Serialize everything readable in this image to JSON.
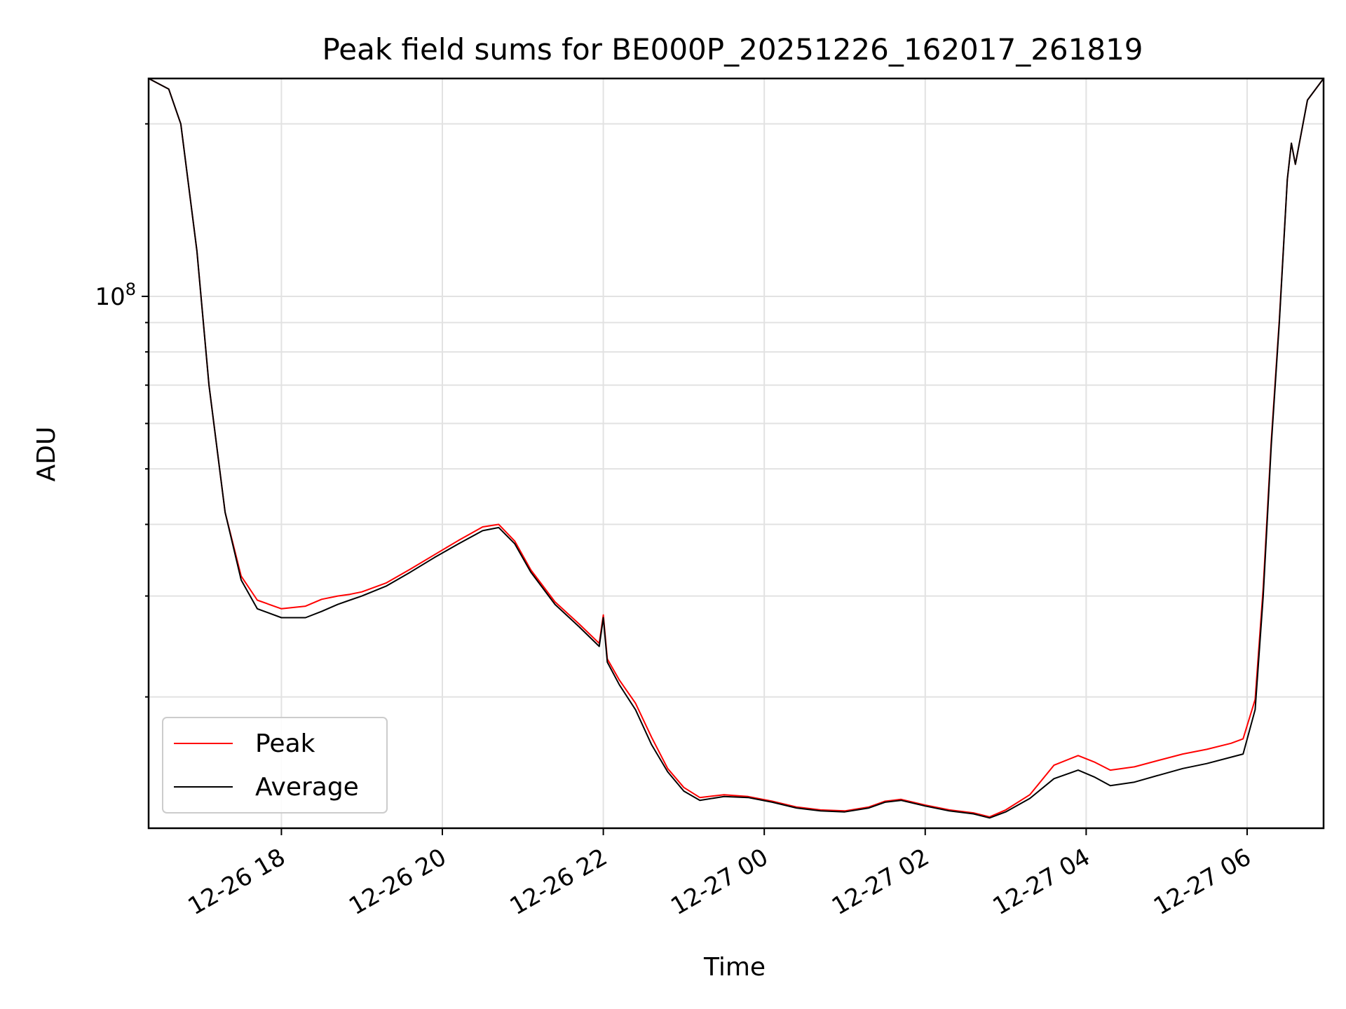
{
  "chart_data": {
    "type": "line",
    "title": "Peak field sums for BE000P_20251226_162017_261819",
    "xlabel": "Time",
    "ylabel": "ADU",
    "yscale": "log",
    "x_unit": "hours since 12-26 16:00",
    "xlim": [
      0.35,
      14.95
    ],
    "ylim": [
      11800000,
      240000000
    ],
    "x_ticks": [
      {
        "value": 2,
        "label": "12-26 18"
      },
      {
        "value": 4,
        "label": "12-26 20"
      },
      {
        "value": 6,
        "label": "12-26 22"
      },
      {
        "value": 8,
        "label": "12-27 00"
      },
      {
        "value": 10,
        "label": "12-27 02"
      },
      {
        "value": 12,
        "label": "12-27 04"
      },
      {
        "value": 14,
        "label": "12-27 06"
      }
    ],
    "y_ticks": [
      {
        "value": 100000000,
        "base": "10",
        "exp": "8"
      }
    ],
    "grid": true,
    "legend": {
      "position": "lower-left",
      "entries": [
        "Peak",
        "Average"
      ]
    },
    "colors": {
      "peak": "#ff0000",
      "average": "#000000",
      "grid": "#e2e2e2"
    },
    "series": [
      {
        "name": "Average",
        "color": "#000000",
        "x": [
          0.35,
          0.6,
          0.75,
          0.95,
          1.1,
          1.3,
          1.5,
          1.7,
          2.0,
          2.3,
          2.5,
          2.7,
          2.85,
          3.0,
          3.3,
          3.6,
          3.9,
          4.2,
          4.5,
          4.7,
          4.9,
          5.1,
          5.4,
          5.7,
          5.95,
          6.0,
          6.05,
          6.2,
          6.4,
          6.6,
          6.8,
          7.0,
          7.2,
          7.5,
          7.8,
          8.1,
          8.4,
          8.7,
          9.0,
          9.3,
          9.5,
          9.7,
          10.0,
          10.3,
          10.6,
          10.8,
          11.0,
          11.3,
          11.6,
          11.9,
          12.1,
          12.3,
          12.6,
          12.9,
          13.2,
          13.5,
          13.8,
          13.95,
          14.1,
          14.2,
          14.3,
          14.4,
          14.5,
          14.55,
          14.6,
          14.75,
          14.95
        ],
        "values": [
          240000000,
          230000000,
          200000000,
          120000000,
          70000000,
          42000000,
          32000000,
          28500000,
          27500000,
          27500000,
          28200000,
          29000000,
          29500000,
          30000000,
          31200000,
          33000000,
          35000000,
          37000000,
          39000000,
          39500000,
          37000000,
          33000000,
          29000000,
          26500000,
          24500000,
          27500000,
          23000000,
          21000000,
          19000000,
          16500000,
          14800000,
          13700000,
          13200000,
          13400000,
          13350000,
          13100000,
          12800000,
          12650000,
          12600000,
          12800000,
          13100000,
          13200000,
          12900000,
          12650000,
          12500000,
          12300000,
          12600000,
          13300000,
          14400000,
          14900000,
          14500000,
          14000000,
          14200000,
          14600000,
          15000000,
          15300000,
          15700000,
          15900000,
          19000000,
          30000000,
          55000000,
          90000000,
          160000000,
          185000000,
          170000000,
          220000000,
          240000000
        ]
      },
      {
        "name": "Peak",
        "color": "#ff0000",
        "x": [
          0.35,
          0.6,
          0.75,
          0.95,
          1.1,
          1.3,
          1.5,
          1.7,
          2.0,
          2.3,
          2.5,
          2.7,
          2.85,
          3.0,
          3.3,
          3.6,
          3.9,
          4.2,
          4.5,
          4.7,
          4.9,
          5.1,
          5.4,
          5.7,
          5.95,
          6.0,
          6.05,
          6.2,
          6.4,
          6.6,
          6.8,
          7.0,
          7.2,
          7.5,
          7.8,
          8.1,
          8.4,
          8.7,
          9.0,
          9.3,
          9.5,
          9.7,
          10.0,
          10.3,
          10.6,
          10.8,
          11.0,
          11.3,
          11.6,
          11.9,
          12.1,
          12.3,
          12.6,
          12.9,
          13.2,
          13.5,
          13.8,
          13.95,
          14.1,
          14.2,
          14.3,
          14.4,
          14.5,
          14.55,
          14.6,
          14.75,
          14.95
        ],
        "values": [
          240000000,
          230000000,
          200000000,
          120000000,
          70000000,
          42000000,
          32500000,
          29500000,
          28500000,
          28800000,
          29600000,
          30000000,
          30200000,
          30500000,
          31600000,
          33400000,
          35400000,
          37500000,
          39600000,
          40000000,
          37400000,
          33300000,
          29300000,
          26800000,
          24800000,
          27800000,
          23300000,
          21400000,
          19500000,
          17000000,
          15000000,
          13900000,
          13350000,
          13500000,
          13400000,
          13150000,
          12850000,
          12700000,
          12650000,
          12850000,
          13150000,
          13250000,
          12950000,
          12700000,
          12550000,
          12350000,
          12700000,
          13500000,
          15200000,
          15800000,
          15400000,
          14900000,
          15100000,
          15500000,
          15900000,
          16200000,
          16600000,
          16900000,
          19800000,
          31000000,
          56000000,
          91000000,
          160000000,
          185000000,
          170000000,
          220000000,
          240000000
        ]
      }
    ]
  }
}
